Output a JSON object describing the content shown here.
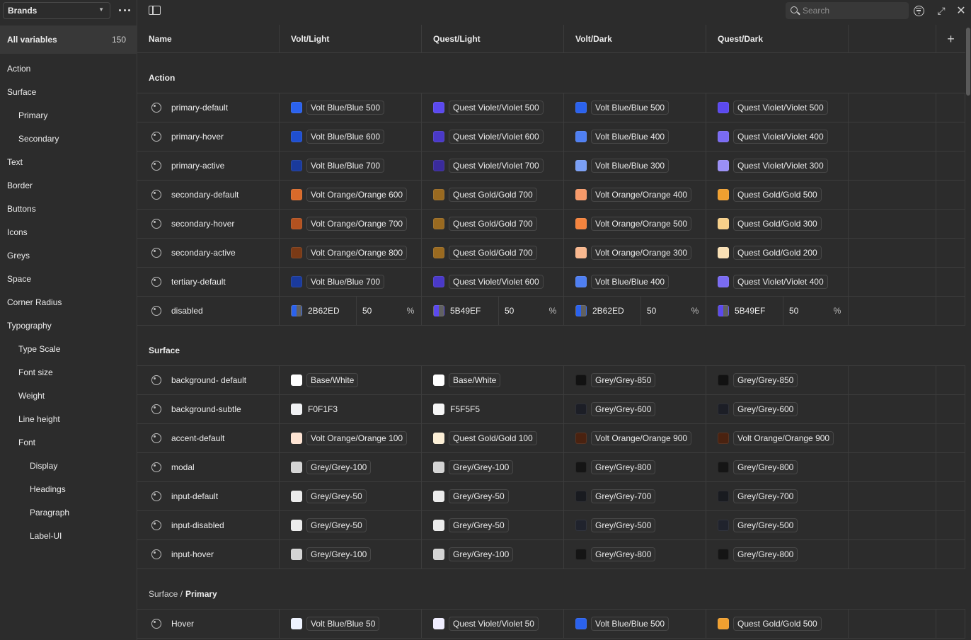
{
  "sidebar": {
    "collection": "Brands",
    "all_label": "All variables",
    "all_count": "150",
    "groups": [
      {
        "label": "Action",
        "level": 0
      },
      {
        "label": "Surface",
        "level": 0
      },
      {
        "label": "Primary",
        "level": 1
      },
      {
        "label": "Secondary",
        "level": 1
      },
      {
        "label": "Text",
        "level": 0
      },
      {
        "label": "Border",
        "level": 0
      },
      {
        "label": "Buttons",
        "level": 0
      },
      {
        "label": "Icons",
        "level": 0
      },
      {
        "label": "Greys",
        "level": 0
      },
      {
        "label": "Space",
        "level": 0
      },
      {
        "label": "Corner Radius",
        "level": 0
      },
      {
        "label": "Typography",
        "level": 0
      },
      {
        "label": "Type Scale",
        "level": 1
      },
      {
        "label": "Font size",
        "level": 1
      },
      {
        "label": "Weight",
        "level": 1
      },
      {
        "label": "Line height",
        "level": 1
      },
      {
        "label": "Font",
        "level": 1
      },
      {
        "label": "Display",
        "level": 2
      },
      {
        "label": "Headings",
        "level": 2
      },
      {
        "label": "Paragraph",
        "level": 2
      },
      {
        "label": "Label-UI",
        "level": 2
      }
    ]
  },
  "toolbar": {
    "search_placeholder": "Search"
  },
  "table": {
    "columns": [
      "Name",
      "Volt/Light",
      "Quest/Light",
      "Volt/Dark",
      "Quest/Dark"
    ],
    "add_label": "+",
    "sections": [
      {
        "title": "Action",
        "prefix": "",
        "rows": [
          {
            "name": "primary-default",
            "values": [
              {
                "label": "Volt Blue/Blue 500",
                "color": "#2b62ed"
              },
              {
                "label": "Quest Violet/Violet 500",
                "color": "#5b49ef"
              },
              {
                "label": "Volt Blue/Blue 500",
                "color": "#2b62ed"
              },
              {
                "label": "Quest Violet/Violet 500",
                "color": "#5b49ef"
              }
            ]
          },
          {
            "name": "primary-hover",
            "values": [
              {
                "label": "Volt Blue/Blue 600",
                "color": "#1f4fd0"
              },
              {
                "label": "Quest Violet/Violet 600",
                "color": "#4a39c9"
              },
              {
                "label": "Volt Blue/Blue 400",
                "color": "#4f7ff2"
              },
              {
                "label": "Quest Violet/Violet 400",
                "color": "#7a6bf2"
              }
            ]
          },
          {
            "name": "primary-active",
            "values": [
              {
                "label": "Volt Blue/Blue 700",
                "color": "#1a3a9c"
              },
              {
                "label": "Quest Violet/Violet 700",
                "color": "#3a2b9c"
              },
              {
                "label": "Volt Blue/Blue 300",
                "color": "#7a9ff5"
              },
              {
                "label": "Quest Violet/Violet 300",
                "color": "#9a8ff5"
              }
            ]
          },
          {
            "name": "secondary-default",
            "values": [
              {
                "label": "Volt Orange/Orange 600",
                "color": "#d86a2a"
              },
              {
                "label": "Quest Gold/Gold 700",
                "color": "#9a6a20"
              },
              {
                "label": "Volt Orange/Orange 400",
                "color": "#f79a6a"
              },
              {
                "label": "Quest Gold/Gold 500",
                "color": "#f0a030"
              }
            ]
          },
          {
            "name": "secondary-hover",
            "values": [
              {
                "label": "Volt Orange/Orange 700",
                "color": "#b35220"
              },
              {
                "label": "Quest Gold/Gold 700",
                "color": "#9a6a20"
              },
              {
                "label": "Volt Orange/Orange 500",
                "color": "#f5843e"
              },
              {
                "label": "Quest Gold/Gold 300",
                "color": "#f7d08a"
              }
            ]
          },
          {
            "name": "secondary-active",
            "values": [
              {
                "label": "Volt Orange/Orange 800",
                "color": "#7a3a16"
              },
              {
                "label": "Quest Gold/Gold 700",
                "color": "#9a6a20"
              },
              {
                "label": "Volt Orange/Orange 300",
                "color": "#f9b88f"
              },
              {
                "label": "Quest Gold/Gold 200",
                "color": "#f9e0b5"
              }
            ]
          },
          {
            "name": "tertiary-default",
            "values": [
              {
                "label": "Volt Blue/Blue 700",
                "color": "#1a3a9c"
              },
              {
                "label": "Quest Violet/Violet 600",
                "color": "#4a39c9"
              },
              {
                "label": "Volt Blue/Blue 400",
                "color": "#4f7ff2"
              },
              {
                "label": "Quest Violet/Violet 400",
                "color": "#7a6bf2"
              }
            ]
          },
          {
            "name": "disabled",
            "values": [
              {
                "hex": "2B62ED",
                "opacity": "50",
                "unit": "%",
                "color": "#2b62ed"
              },
              {
                "hex": "5B49EF",
                "opacity": "50",
                "unit": "%",
                "color": "#5b49ef"
              },
              {
                "hex": "2B62ED",
                "opacity": "50",
                "unit": "%",
                "color": "#2b62ed"
              },
              {
                "hex": "5B49EF",
                "opacity": "50",
                "unit": "%",
                "color": "#5b49ef"
              }
            ]
          }
        ]
      },
      {
        "title": "Surface",
        "prefix": "",
        "rows": [
          {
            "name": "background- default",
            "values": [
              {
                "label": "Base/White",
                "color": "#ffffff"
              },
              {
                "label": "Base/White",
                "color": "#ffffff"
              },
              {
                "label": "Grey/Grey-850",
                "color": "#121212"
              },
              {
                "label": "Grey/Grey-850",
                "color": "#121212"
              }
            ]
          },
          {
            "name": "background-subtle",
            "values": [
              {
                "hex": "F0F1F3",
                "color": "#f0f1f3"
              },
              {
                "hex": "F5F5F5",
                "color": "#f5f5f5"
              },
              {
                "label": "Grey/Grey-600",
                "color": "#1c1e26"
              },
              {
                "label": "Grey/Grey-600",
                "color": "#1c1e26"
              }
            ]
          },
          {
            "name": "accent-default",
            "values": [
              {
                "label": "Volt Orange/Orange 100",
                "color": "#fde3d2"
              },
              {
                "label": "Quest Gold/Gold 100",
                "color": "#fcefd6"
              },
              {
                "label": "Volt Orange/Orange 900",
                "color": "#4a2210"
              },
              {
                "label": "Volt Orange/Orange 900",
                "color": "#4a2210"
              }
            ]
          },
          {
            "name": "modal",
            "values": [
              {
                "label": "Grey/Grey-100",
                "color": "#d4d4d4"
              },
              {
                "label": "Grey/Grey-100",
                "color": "#d4d4d4"
              },
              {
                "label": "Grey/Grey-800",
                "color": "#151515"
              },
              {
                "label": "Grey/Grey-800",
                "color": "#151515"
              }
            ]
          },
          {
            "name": "input-default",
            "values": [
              {
                "label": "Grey/Grey-50",
                "color": "#ececec"
              },
              {
                "label": "Grey/Grey-50",
                "color": "#ececec"
              },
              {
                "label": "Grey/Grey-700",
                "color": "#191b20"
              },
              {
                "label": "Grey/Grey-700",
                "color": "#191b20"
              }
            ]
          },
          {
            "name": "input-disabled",
            "values": [
              {
                "label": "Grey/Grey-50",
                "color": "#ececec"
              },
              {
                "label": "Grey/Grey-50",
                "color": "#ececec"
              },
              {
                "label": "Grey/Grey-500",
                "color": "#20232d"
              },
              {
                "label": "Grey/Grey-500",
                "color": "#20232d"
              }
            ]
          },
          {
            "name": "input-hover",
            "values": [
              {
                "label": "Grey/Grey-100",
                "color": "#d4d4d4"
              },
              {
                "label": "Grey/Grey-100",
                "color": "#d4d4d4"
              },
              {
                "label": "Grey/Grey-800",
                "color": "#151515"
              },
              {
                "label": "Grey/Grey-800",
                "color": "#151515"
              }
            ]
          }
        ]
      },
      {
        "title": "Primary",
        "prefix": "Surface /",
        "rows": [
          {
            "name": "Hover",
            "values": [
              {
                "label": "Volt Blue/Blue 50",
                "color": "#eef3ff"
              },
              {
                "label": "Quest Violet/Violet 50",
                "color": "#f0eeff"
              },
              {
                "label": "Volt Blue/Blue 500",
                "color": "#2b62ed"
              },
              {
                "label": "Quest Gold/Gold 500",
                "color": "#f0a030"
              }
            ]
          }
        ]
      }
    ]
  }
}
